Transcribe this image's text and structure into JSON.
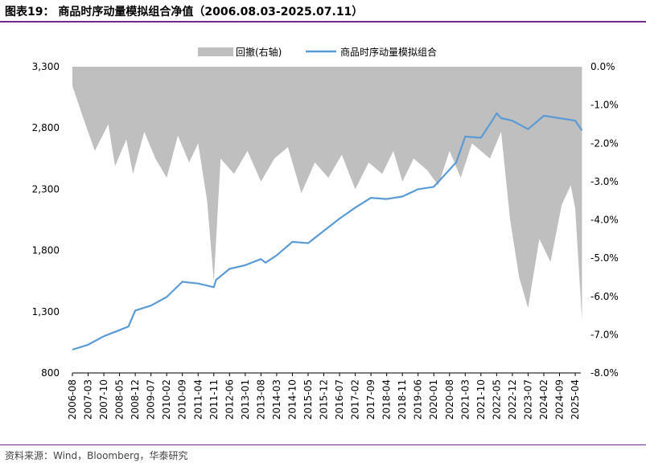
{
  "title": "图表19： 商品时序动量模拟组合净值（2006.08.03-2025.07.11）",
  "source": "资料来源：Wind，Bloomberg，华泰研究",
  "colors": {
    "line": "#5b9bd5",
    "area": "#bfbfbf",
    "rule": "#6b2a8c"
  },
  "chart_data": {
    "type": "line",
    "legend": [
      "回撤(右轴)",
      "商品时序动量模拟组合"
    ],
    "left_axis": {
      "ylim": [
        800,
        3300
      ],
      "ticks": [
        "3,300",
        "2,800",
        "2,300",
        "1,800",
        "1,300",
        "800"
      ]
    },
    "right_axis": {
      "ylim": [
        -8.0,
        0.0
      ],
      "ticks": [
        "0.0%",
        "-1.0%",
        "-2.0%",
        "-3.0%",
        "-4.0%",
        "-5.0%",
        "-6.0%",
        "-7.0%",
        "-8.0%"
      ]
    },
    "x_ticks": [
      "2006-08",
      "2007-03",
      "2007-10",
      "2008-05",
      "2008-12",
      "2009-07",
      "2010-02",
      "2010-09",
      "2011-04",
      "2011-11",
      "2012-06",
      "2013-01",
      "2013-08",
      "2014-03",
      "2014-10",
      "2015-05",
      "2015-12",
      "2016-07",
      "2017-02",
      "2017-09",
      "2018-04",
      "2018-11",
      "2019-06",
      "2020-01",
      "2020-08",
      "2021-03",
      "2021-10",
      "2022-05",
      "2022-12",
      "2023-07",
      "2024-02",
      "2024-09",
      "2025-04"
    ],
    "nav_series": {
      "name": "商品时序动量模拟组合",
      "x": [
        "2006-08",
        "2007-03",
        "2007-10",
        "2008-05",
        "2008-09",
        "2008-12",
        "2009-07",
        "2010-02",
        "2010-09",
        "2010-11",
        "2011-04",
        "2011-11",
        "2011-12",
        "2012-06",
        "2013-01",
        "2013-08",
        "2013-10",
        "2014-03",
        "2014-10",
        "2015-05",
        "2015-12",
        "2016-07",
        "2017-02",
        "2017-09",
        "2018-04",
        "2018-11",
        "2019-06",
        "2020-01",
        "2020-08",
        "2020-11",
        "2021-03",
        "2021-10",
        "2022-03",
        "2022-05",
        "2022-07",
        "2022-12",
        "2023-07",
        "2024-02",
        "2024-09",
        "2025-04",
        "2025-07"
      ],
      "values": [
        990,
        1030,
        1100,
        1150,
        1180,
        1310,
        1350,
        1420,
        1545,
        1540,
        1530,
        1500,
        1560,
        1650,
        1680,
        1730,
        1700,
        1760,
        1870,
        1860,
        1960,
        2060,
        2150,
        2230,
        2220,
        2240,
        2300,
        2320,
        2460,
        2520,
        2730,
        2720,
        2860,
        2920,
        2880,
        2860,
        2790,
        2900,
        2880,
        2860,
        2780
      ]
    },
    "drawdown_series": {
      "name": "回撤(右轴)",
      "x": [
        "2006-08",
        "2006-12",
        "2007-06",
        "2007-12",
        "2008-03",
        "2008-08",
        "2008-11",
        "2009-04",
        "2009-09",
        "2010-02",
        "2010-07",
        "2010-12",
        "2011-04",
        "2011-08",
        "2011-11",
        "2012-02",
        "2012-08",
        "2013-02",
        "2013-08",
        "2014-02",
        "2014-08",
        "2015-02",
        "2015-08",
        "2016-02",
        "2016-08",
        "2017-02",
        "2017-08",
        "2018-02",
        "2018-07",
        "2018-11",
        "2019-04",
        "2019-10",
        "2020-03",
        "2020-08",
        "2021-01",
        "2021-06",
        "2021-10",
        "2022-02",
        "2022-07",
        "2022-11",
        "2023-03",
        "2023-07",
        "2023-12",
        "2024-05",
        "2024-10",
        "2025-02",
        "2025-04",
        "2025-07"
      ],
      "values": [
        -0.5,
        -1.2,
        -2.2,
        -1.5,
        -2.6,
        -1.9,
        -2.8,
        -1.7,
        -2.4,
        -2.9,
        -1.8,
        -2.5,
        -2.0,
        -3.5,
        -5.6,
        -2.4,
        -2.8,
        -2.2,
        -3.0,
        -2.4,
        -2.1,
        -3.3,
        -2.5,
        -2.9,
        -2.3,
        -3.2,
        -2.5,
        -2.8,
        -2.2,
        -3.0,
        -2.4,
        -2.7,
        -3.1,
        -2.2,
        -2.9,
        -2.0,
        -2.2,
        -2.4,
        -1.7,
        -4.0,
        -5.5,
        -6.3,
        -4.5,
        -5.1,
        -3.6,
        -3.1,
        -3.7,
        -6.6
      ]
    }
  }
}
